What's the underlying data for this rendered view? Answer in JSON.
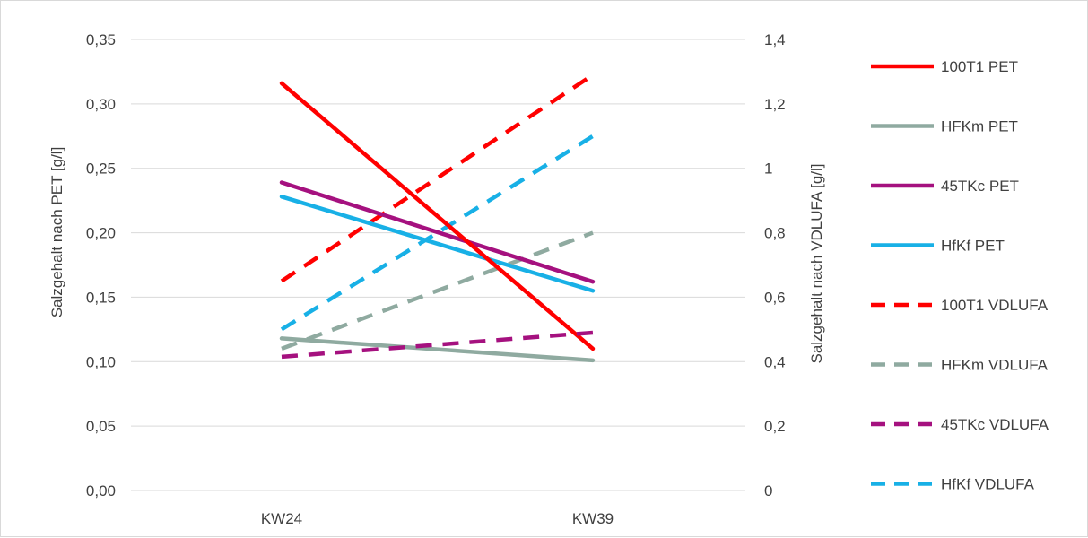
{
  "chart_data": {
    "type": "line",
    "categories": [
      "KW24",
      "KW39"
    ],
    "y_left": {
      "label": "Salzgehalt nach PET [g/l]",
      "ylim": [
        0,
        0.35
      ],
      "ticks": [
        "0,00",
        "0,05",
        "0,10",
        "0,15",
        "0,20",
        "0,25",
        "0,30",
        "0,35"
      ]
    },
    "y_right": {
      "label": "Salzgehalt nach VDLUFA [g/l]",
      "ylim": [
        0,
        1.4
      ],
      "ticks": [
        "0",
        "0,2",
        "0,4",
        "0,6",
        "0,8",
        "1",
        "1,2",
        "1,4"
      ]
    },
    "grid": true,
    "legend_position": "right",
    "series": [
      {
        "name": "100T1 PET",
        "axis": "left",
        "values": [
          0.316,
          0.11
        ],
        "color": "#ff0000",
        "dash": false
      },
      {
        "name": "HFKm PET",
        "axis": "left",
        "values": [
          0.118,
          0.101
        ],
        "color": "#8faaa0",
        "dash": false
      },
      {
        "name": "45TKc PET",
        "axis": "left",
        "values": [
          0.239,
          0.162
        ],
        "color": "#a5117f",
        "dash": false
      },
      {
        "name": "HfKf PET",
        "axis": "left",
        "values": [
          0.228,
          0.155
        ],
        "color": "#18b0e6",
        "dash": false
      },
      {
        "name": "100T1 VDLUFA",
        "axis": "right",
        "values": [
          0.65,
          1.29
        ],
        "color": "#ff0000",
        "dash": true
      },
      {
        "name": "HFKm VDLUFA",
        "axis": "right",
        "values": [
          0.44,
          0.8
        ],
        "color": "#8faaa0",
        "dash": true
      },
      {
        "name": "45TKc VDLUFA",
        "axis": "right",
        "values": [
          0.415,
          0.49
        ],
        "color": "#a5117f",
        "dash": true
      },
      {
        "name": "HfKf VDLUFA",
        "axis": "right",
        "values": [
          0.5,
          1.1
        ],
        "color": "#18b0e6",
        "dash": true
      }
    ]
  }
}
